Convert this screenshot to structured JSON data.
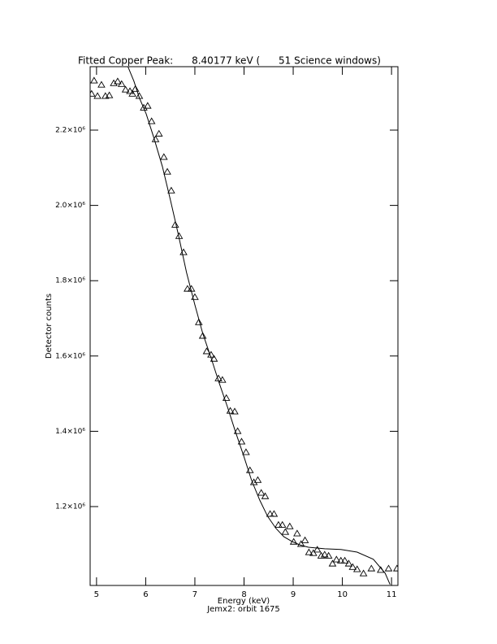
{
  "chart_data": {
    "type": "scatter",
    "title": "Fitted Copper Peak:      8.40177 keV (      51 Science windows)",
    "x_label": "Energy (keV)",
    "subtitle": "Jemx2: orbit 1675",
    "y_label": "Detector counts",
    "xlim": [
      4.87,
      11.13
    ],
    "ylim": [
      990500,
      2368500
    ],
    "xticks": [
      5,
      6,
      7,
      8,
      9,
      10,
      11
    ],
    "yticks": [
      {
        "value": 1200000,
        "label": "1.2×10⁶"
      },
      {
        "value": 1400000,
        "label": "1.4×10⁶"
      },
      {
        "value": 1600000,
        "label": "1.6×10⁶"
      },
      {
        "value": 1800000,
        "label": "1.8×10⁶"
      },
      {
        "value": 2000000,
        "label": "2.0×10⁶"
      },
      {
        "value": 2200000,
        "label": "2.2×10⁶"
      }
    ],
    "series": [
      {
        "type": "scatter",
        "color": "#000000",
        "x": [
          4.9,
          4.95,
          5.02,
          5.1,
          5.18,
          5.26,
          5.35,
          5.43,
          5.51,
          5.59,
          5.68,
          5.73,
          5.79,
          5.87,
          5.96,
          6.04,
          6.12,
          6.2,
          6.27,
          6.37,
          6.44,
          6.52,
          6.6,
          6.68,
          6.77,
          6.85,
          6.93,
          7.0,
          7.08,
          7.16,
          7.24,
          7.33,
          7.39,
          7.48,
          7.56,
          7.64,
          7.72,
          7.81,
          7.87,
          7.95,
          8.04,
          8.12,
          8.2,
          8.28,
          8.35,
          8.43,
          8.53,
          8.61,
          8.7,
          8.78,
          8.84,
          8.93,
          9.01,
          9.08,
          9.16,
          9.24,
          9.32,
          9.41,
          9.49,
          9.57,
          9.64,
          9.72,
          9.8,
          9.88,
          9.97,
          10.05,
          10.13,
          10.21,
          10.3,
          10.43,
          10.59,
          10.78,
          10.94,
          11.11
        ],
        "values": [
          2297000,
          2332000,
          2291000,
          2321000,
          2291000,
          2293000,
          2325000,
          2330000,
          2323000,
          2308000,
          2304000,
          2297000,
          2310000,
          2291000,
          2260000,
          2265000,
          2224000,
          2176000,
          2191000,
          2129000,
          2090000,
          2040000,
          1949000,
          1919000,
          1876000,
          1779000,
          1779000,
          1757000,
          1690000,
          1654000,
          1613000,
          1604000,
          1593000,
          1541000,
          1537000,
          1489000,
          1455000,
          1453000,
          1401000,
          1373000,
          1345000,
          1297000,
          1265000,
          1271000,
          1237000,
          1228000,
          1181000,
          1181000,
          1152000,
          1152000,
          1133000,
          1148000,
          1107000,
          1129000,
          1101000,
          1111000,
          1079000,
          1077000,
          1086000,
          1070000,
          1073000,
          1070000,
          1049000,
          1060000,
          1057000,
          1057000,
          1049000,
          1040000,
          1034000,
          1023000,
          1036000,
          1032000,
          1036000,
          1036000
        ]
      },
      {
        "type": "line",
        "color": "#000000",
        "x": [
          5.64,
          5.76,
          5.87,
          6.01,
          6.17,
          6.34,
          6.5,
          6.67,
          6.83,
          7.0,
          7.16,
          7.33,
          7.49,
          7.66,
          7.82,
          7.99,
          8.15,
          8.32,
          8.48,
          8.65,
          8.81,
          8.98,
          9.14,
          9.31,
          9.64,
          9.97,
          10.3,
          10.63,
          10.87,
          10.97
        ],
        "values": [
          2368000,
          2330000,
          2286000,
          2243000,
          2178000,
          2103000,
          2016000,
          1919000,
          1822000,
          1736000,
          1660000,
          1595000,
          1530000,
          1466000,
          1401000,
          1336000,
          1271000,
          1217000,
          1174000,
          1142000,
          1120000,
          1107000,
          1098000,
          1092000,
          1088000,
          1086000,
          1079000,
          1060000,
          1023000,
          993000
        ]
      }
    ]
  }
}
